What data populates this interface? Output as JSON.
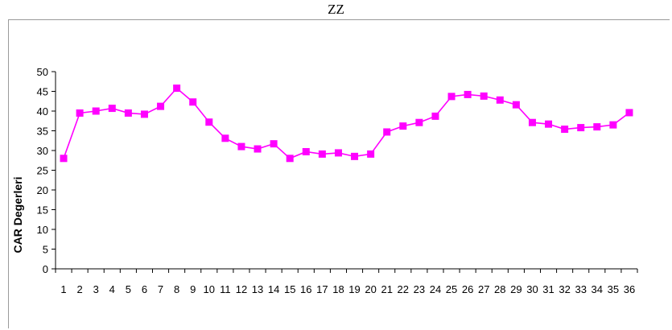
{
  "chart_data": {
    "type": "line",
    "title": "ZZ",
    "xlabel": "",
    "ylabel": "CAR Degerleri",
    "ylim": [
      0,
      50
    ],
    "yticks": [
      0,
      5,
      10,
      15,
      20,
      25,
      30,
      35,
      40,
      45,
      50
    ],
    "categories": [
      "1",
      "2",
      "3",
      "4",
      "5",
      "6",
      "7",
      "8",
      "9",
      "10",
      "11",
      "12",
      "13",
      "14",
      "15",
      "16",
      "17",
      "18",
      "19",
      "20",
      "21",
      "22",
      "23",
      "24",
      "25",
      "26",
      "27",
      "28",
      "29",
      "30",
      "31",
      "32",
      "33",
      "34",
      "35",
      "36"
    ],
    "series": [
      {
        "values": [
          28.0,
          39.5,
          40.0,
          40.7,
          39.5,
          39.2,
          41.2,
          45.8,
          42.3,
          37.2,
          33.1,
          31.0,
          30.4,
          31.7,
          28.0,
          29.7,
          29.1,
          29.4,
          28.5,
          29.1,
          34.7,
          36.2,
          37.1,
          38.7,
          43.7,
          44.2,
          43.8,
          42.8,
          41.6,
          37.1,
          36.7,
          35.4,
          35.8,
          36.0,
          36.5,
          39.6
        ],
        "color": "#ff00ff",
        "marker": "square"
      }
    ],
    "grid": false,
    "legend": "none"
  }
}
